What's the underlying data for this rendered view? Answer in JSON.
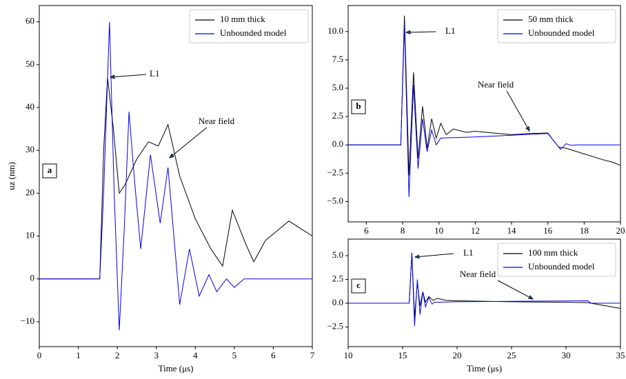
{
  "chart_data": [
    {
      "type": "line",
      "panel_label": "a",
      "xlabel": "Time (μs)",
      "ylabel": "uz (nm)",
      "xlim": [
        0,
        7
      ],
      "ylim": [
        -15.8,
        63.8
      ],
      "xticks": [
        0,
        1,
        2,
        3,
        4,
        5,
        6,
        7
      ],
      "yticks": [
        {
          "value": -10,
          "label": "−10"
        },
        0,
        10,
        20,
        30,
        40,
        50,
        60
      ],
      "legend": "upper right",
      "annotations": [
        "L1",
        "Near field"
      ],
      "series": [
        {
          "name": "10 mm thick",
          "color": "#000000",
          "x": [
            0,
            1.55,
            1.65,
            1.75,
            1.9,
            2.05,
            2.2,
            2.5,
            2.8,
            3.05,
            3.3,
            3.6,
            4.0,
            4.4,
            4.7,
            4.95,
            5.3,
            5.5,
            5.8,
            6.2,
            6.4,
            7
          ],
          "values": [
            0,
            0,
            30,
            47,
            35,
            20,
            22,
            28,
            32,
            31,
            36,
            24,
            14,
            7,
            3,
            16,
            8,
            4,
            9,
            12,
            13.5,
            10
          ]
        },
        {
          "name": "Unbounded model",
          "color": "#0000ee",
          "x": [
            0,
            1.55,
            1.65,
            1.8,
            1.92,
            2.05,
            2.18,
            2.3,
            2.45,
            2.6,
            2.85,
            3.1,
            3.3,
            3.45,
            3.6,
            3.85,
            4.1,
            4.35,
            4.55,
            4.8,
            5.0,
            5.25,
            7
          ],
          "values": [
            0,
            0,
            20,
            60,
            20,
            -12,
            12,
            39,
            22,
            7,
            29,
            13,
            26,
            10,
            -6,
            7,
            -4,
            1,
            -3,
            0,
            -2,
            0,
            0
          ]
        }
      ]
    },
    {
      "type": "line",
      "panel_label": "b",
      "xlim": [
        5,
        20
      ],
      "ylim": [
        -6.8,
        12.3
      ],
      "xticks": [
        6,
        8,
        10,
        12,
        14,
        16,
        18,
        20
      ],
      "yticks": [
        {
          "value": -5,
          "label": "−5.0"
        },
        {
          "value": -2.5,
          "label": "−2.5"
        },
        {
          "value": 0,
          "label": "0.0"
        },
        {
          "value": 2.5,
          "label": "2.5"
        },
        {
          "value": 5,
          "label": "5.0"
        },
        {
          "value": 7.5,
          "label": "7.5"
        },
        {
          "value": 10,
          "label": "10.0"
        }
      ],
      "legend": "upper right",
      "annotations": [
        "L1",
        "Near field"
      ],
      "series": [
        {
          "name": "50 mm thick",
          "color": "#000000",
          "x": [
            5,
            7.9,
            8.1,
            8.35,
            8.6,
            8.85,
            9.1,
            9.35,
            9.6,
            9.85,
            10.1,
            10.4,
            10.8,
            11.5,
            12,
            13,
            14,
            15,
            16,
            16.3,
            16.6,
            17,
            18,
            19,
            19.5,
            20
          ],
          "values": [
            0,
            0,
            11.4,
            -2.7,
            6.4,
            -1.2,
            3.4,
            -0.3,
            2.3,
            0.6,
            1.9,
            0.9,
            1.4,
            1.1,
            1.2,
            1.05,
            0.9,
            1.0,
            1.05,
            0.4,
            -0.2,
            -0.3,
            -0.8,
            -1.3,
            -1.5,
            -1.8
          ]
        },
        {
          "name": "Unbounded model",
          "color": "#0000ee",
          "x": [
            5,
            7.9,
            8.1,
            8.35,
            8.6,
            8.85,
            9.1,
            9.35,
            9.6,
            9.85,
            10.1,
            12,
            14,
            16,
            16.4,
            16.7,
            17,
            17.3,
            17.6,
            20
          ],
          "values": [
            0,
            0,
            10.7,
            -4.6,
            5.3,
            -2.1,
            2.3,
            -0.6,
            1.3,
            0,
            0.6,
            0.7,
            0.85,
            1.0,
            0.2,
            -0.4,
            0.1,
            -0.05,
            0,
            0
          ]
        }
      ]
    },
    {
      "type": "line",
      "panel_label": "c",
      "xlabel": "Time (μs)",
      "xlim": [
        10,
        35
      ],
      "ylim": [
        -4.57,
        6.74
      ],
      "xticks": [
        10,
        15,
        20,
        25,
        30,
        35
      ],
      "yticks": [
        {
          "value": -2.5,
          "label": "−2.5"
        },
        {
          "value": 0,
          "label": "0.0"
        },
        {
          "value": 2.5,
          "label": "2.5"
        },
        {
          "value": 5,
          "label": "5.0"
        }
      ],
      "legend": "upper right",
      "annotations": [
        "L1",
        "Near field"
      ],
      "series": [
        {
          "name": "100 mm thick",
          "color": "#000000",
          "x": [
            10,
            15.6,
            15.85,
            16.1,
            16.35,
            16.6,
            16.85,
            17.1,
            17.4,
            17.8,
            18.2,
            19,
            20,
            25,
            30,
            32,
            33,
            34,
            35
          ],
          "values": [
            0,
            0,
            5.3,
            -1.5,
            2.2,
            -0.3,
            1.2,
            0.1,
            0.7,
            0.3,
            0.5,
            0.3,
            0.25,
            0.15,
            0.1,
            0.05,
            -0.15,
            -0.35,
            -0.55
          ]
        },
        {
          "name": "Unbounded model",
          "color": "#0000ee",
          "x": [
            10,
            15.6,
            15.85,
            16.1,
            16.35,
            16.6,
            16.85,
            17.1,
            17.4,
            17.7,
            17.9,
            20,
            25,
            32,
            32.3,
            35
          ],
          "values": [
            0,
            0,
            5.2,
            -2.4,
            2.5,
            -1.2,
            1.2,
            -0.4,
            0.6,
            -0.1,
            0.1,
            0.15,
            0.2,
            0.25,
            0,
            0
          ]
        }
      ]
    }
  ]
}
